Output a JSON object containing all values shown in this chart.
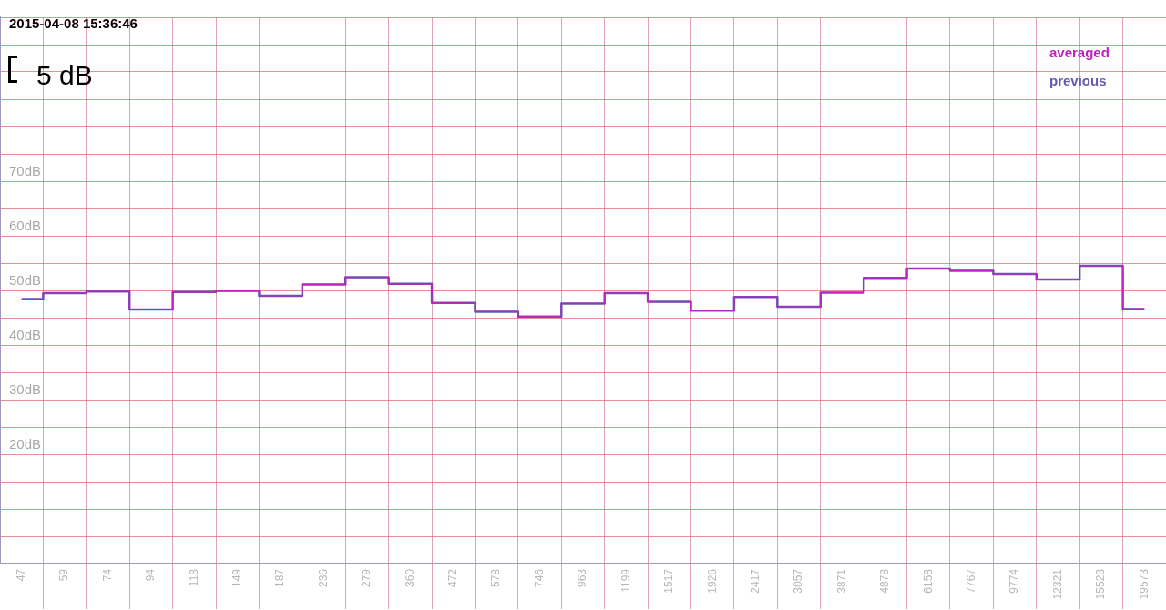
{
  "chart_data": {
    "type": "step",
    "title": "2015-04-08 15:36:46",
    "annotations": [
      "5 dB"
    ],
    "categories": [
      "47",
      "59",
      "74",
      "94",
      "118",
      "149",
      "187",
      "236",
      "279",
      "360",
      "472",
      "578",
      "746",
      "963",
      "1199",
      "1517",
      "1926",
      "2417",
      "3057",
      "3871",
      "4878",
      "6158",
      "7767",
      "9774",
      "12321",
      "15528",
      "19573"
    ],
    "series": [
      {
        "name": "previous",
        "color": "#6a58b0",
        "values": [
          48.4,
          49.5,
          49.8,
          46.5,
          49.7,
          49.9,
          49.0,
          51.1,
          52.4,
          51.2,
          47.7,
          46.1,
          45.2,
          47.6,
          49.5,
          47.9,
          46.3,
          48.8,
          47.0,
          49.6,
          52.3,
          54.0,
          53.6,
          53.0,
          52.0,
          54.5,
          46.6
        ]
      },
      {
        "name": "averaged",
        "color": "#c020c0",
        "values": [
          48.4,
          49.5,
          49.8,
          46.5,
          49.7,
          49.9,
          49.0,
          51.1,
          52.4,
          51.2,
          47.7,
          46.1,
          45.2,
          47.6,
          49.5,
          47.9,
          46.3,
          48.8,
          47.0,
          49.6,
          52.3,
          54.0,
          53.6,
          53.0,
          52.0,
          54.5,
          46.6
        ]
      }
    ],
    "ylim": [
      0,
      100
    ],
    "yticks": [
      {
        "value": 0,
        "label": null
      },
      {
        "value": 5,
        "label": null
      },
      {
        "value": 10,
        "label": null
      },
      {
        "value": 15,
        "label": null
      },
      {
        "value": 20,
        "label": "20dB"
      },
      {
        "value": 25,
        "label": null
      },
      {
        "value": 30,
        "label": "30dB"
      },
      {
        "value": 35,
        "label": null
      },
      {
        "value": 40,
        "label": "40dB"
      },
      {
        "value": 45,
        "label": null
      },
      {
        "value": 50,
        "label": "50dB"
      },
      {
        "value": 55,
        "label": null
      },
      {
        "value": 60,
        "label": "60dB"
      },
      {
        "value": 65,
        "label": null
      },
      {
        "value": 70,
        "label": "70dB"
      },
      {
        "value": 75,
        "label": null
      },
      {
        "value": 80,
        "label": null
      },
      {
        "value": 85,
        "label": null
      },
      {
        "value": 90,
        "label": null
      },
      {
        "value": 95,
        "label": null
      },
      {
        "value": 100,
        "label": null
      }
    ],
    "grid": true,
    "legend": "top right"
  }
}
